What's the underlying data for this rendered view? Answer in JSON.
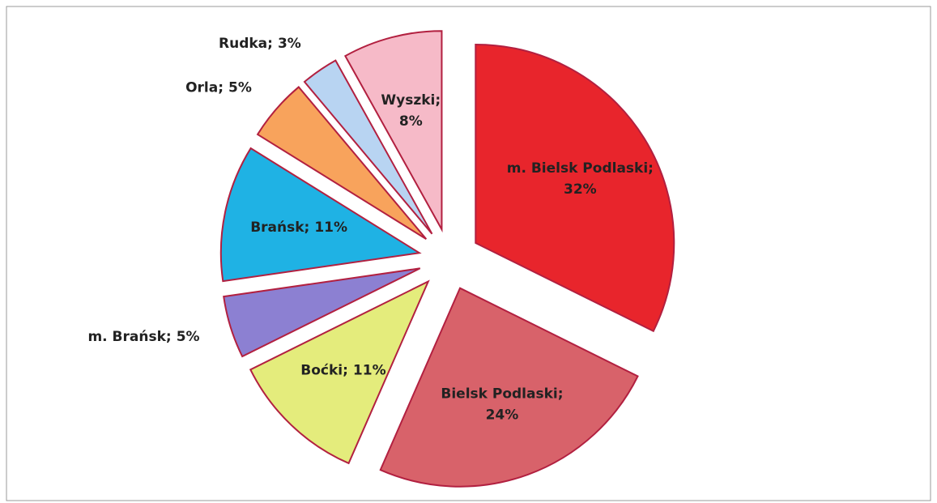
{
  "chart_data": {
    "type": "pie",
    "categories": [
      "m. Bielsk Podlaski;",
      "Bielsk Podlaski;",
      "Boćki;",
      "m. Brańsk;",
      "Brańsk;",
      "Orla;",
      "Rudka;",
      "Wyszki;"
    ],
    "values": [
      32,
      24,
      11,
      5,
      11,
      5,
      3,
      8
    ],
    "value_labels": [
      "32%",
      "24%",
      "11%",
      "5%",
      "11%",
      "5%",
      "3%",
      "8%"
    ],
    "colors": [
      "#e8252c",
      "#d8626a",
      "#e4ec7c",
      "#8c80d2",
      "#1fb2e4",
      "#f8a35c",
      "#b8d4f2",
      "#f6bac8"
    ]
  }
}
